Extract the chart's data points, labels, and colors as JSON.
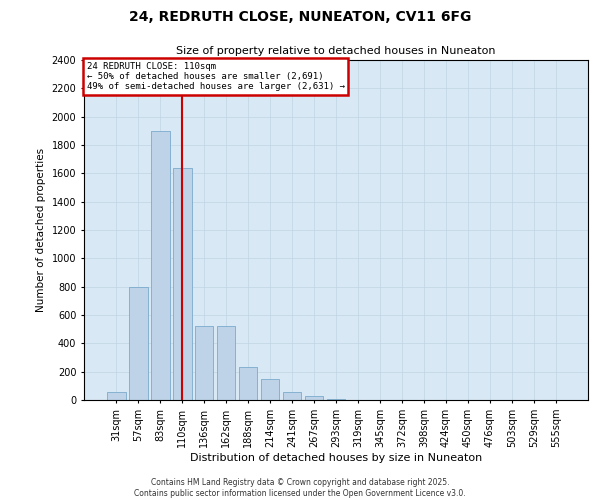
{
  "title": "24, REDRUTH CLOSE, NUNEATON, CV11 6FG",
  "subtitle": "Size of property relative to detached houses in Nuneaton",
  "xlabel": "Distribution of detached houses by size in Nuneaton",
  "ylabel": "Number of detached properties",
  "categories": [
    "31sqm",
    "57sqm",
    "83sqm",
    "110sqm",
    "136sqm",
    "162sqm",
    "188sqm",
    "214sqm",
    "241sqm",
    "267sqm",
    "293sqm",
    "319sqm",
    "345sqm",
    "372sqm",
    "398sqm",
    "424sqm",
    "450sqm",
    "476sqm",
    "503sqm",
    "529sqm",
    "555sqm"
  ],
  "values": [
    55,
    800,
    1900,
    1640,
    520,
    520,
    230,
    150,
    55,
    30,
    10,
    0,
    0,
    0,
    0,
    0,
    0,
    0,
    0,
    0,
    0
  ],
  "bar_color": "#bed3e8",
  "bar_edge_color": "#7aaacc",
  "vline_index": 3,
  "vline_color": "#cc0000",
  "annotation_line1": "24 REDRUTH CLOSE: 110sqm",
  "annotation_line2": "← 50% of detached houses are smaller (2,691)",
  "annotation_line3": "49% of semi-detached houses are larger (2,631) →",
  "annotation_box_color": "#cc0000",
  "ylim": [
    0,
    2400
  ],
  "yticks": [
    0,
    200,
    400,
    600,
    800,
    1000,
    1200,
    1400,
    1600,
    1800,
    2000,
    2200,
    2400
  ],
  "grid_color": "#c0d4e4",
  "background_color": "#d8e8f4",
  "footer_line1": "Contains HM Land Registry data © Crown copyright and database right 2025.",
  "footer_line2": "Contains public sector information licensed under the Open Government Licence v3.0."
}
